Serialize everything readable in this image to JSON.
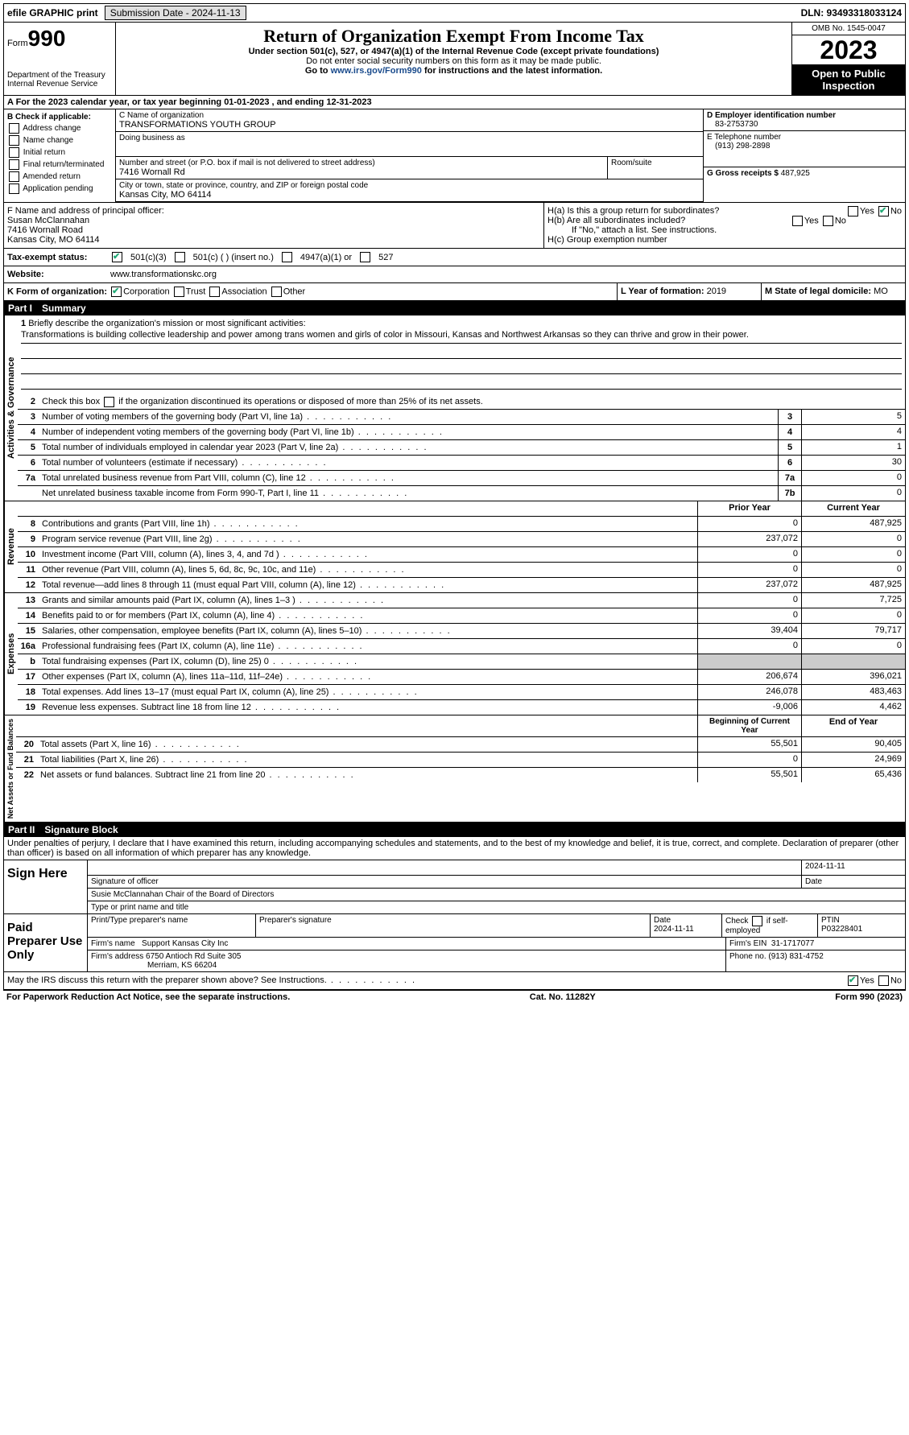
{
  "topbar": {
    "efile": "efile GRAPHIC print",
    "sub_label": "Submission Date - 2024-11-13",
    "dln_label": "DLN: 93493318033124"
  },
  "header": {
    "form_pre": "Form",
    "form_no": "990",
    "dept": "Department of the Treasury\nInternal Revenue Service",
    "title": "Return of Organization Exempt From Income Tax",
    "sub1": "Under section 501(c), 527, or 4947(a)(1) of the Internal Revenue Code (except private foundations)",
    "sub2": "Do not enter social security numbers on this form as it may be made public.",
    "sub3_pre": "Go to ",
    "sub3_link": "www.irs.gov/Form990",
    "sub3_post": " for instructions and the latest information.",
    "omb": "OMB No. 1545-0047",
    "year": "2023",
    "inspect": "Open to Public Inspection"
  },
  "rowA": "A For the 2023 calendar year, or tax year beginning 01-01-2023    , and ending 12-31-2023",
  "boxB": {
    "label": "B Check if applicable:",
    "items": [
      "Address change",
      "Name change",
      "Initial return",
      "Final return/terminated",
      "Amended return",
      "Application pending"
    ]
  },
  "boxC": {
    "name_lbl": "C Name of organization",
    "name": "TRANSFORMATIONS YOUTH GROUP",
    "dba_lbl": "Doing business as",
    "dba": "",
    "addr_lbl": "Number and street (or P.O. box if mail is not delivered to street address)",
    "addr": "7416 Wornall Rd",
    "suite_lbl": "Room/suite",
    "city_lbl": "City or town, state or province, country, and ZIP or foreign postal code",
    "city": "Kansas City, MO  64114"
  },
  "boxD": {
    "lbl": "D Employer identification number",
    "val": "83-2753730"
  },
  "boxE": {
    "lbl": "E Telephone number",
    "val": "(913) 298-2898"
  },
  "boxG": {
    "lbl": "G Gross receipts $",
    "val": "487,925"
  },
  "boxF": {
    "lbl": "F  Name and address of principal officer:",
    "name": "Susan McClannahan",
    "addr": "7416 Wornall Road",
    "city": "Kansas City, MO  64114"
  },
  "boxH": {
    "a": "H(a)  Is this a group return for subordinates?",
    "b": "H(b)  Are all subordinates included?",
    "b2": "If \"No,\" attach a list. See instructions.",
    "c": "H(c)  Group exemption number"
  },
  "rowI": {
    "lbl": "Tax-exempt status:",
    "o1": "501(c)(3)",
    "o2": "501(c) (  ) (insert no.)",
    "o3": "4947(a)(1) or",
    "o4": "527"
  },
  "rowJ": {
    "lbl": "Website:",
    "val": "www.transformationskc.org"
  },
  "rowK": {
    "lbl": "K Form of organization:",
    "o1": "Corporation",
    "o2": "Trust",
    "o3": "Association",
    "o4": "Other"
  },
  "rowL": {
    "lbl": "L Year of formation:",
    "val": "2019"
  },
  "rowM": {
    "lbl": "M State of legal domicile:",
    "val": "MO"
  },
  "part1": {
    "lbl": "Part I",
    "title": "Summary"
  },
  "mission": {
    "q": "Briefly describe the organization's mission or most significant activities:",
    "text": "Transformations is building collective leadership and power among trans women and girls of color in Missouri, Kansas and Northwest Arkansas so they can thrive and grow in their power."
  },
  "line2": "Check this box      if the organization discontinued its operations or disposed of more than 25% of its net assets.",
  "gov_lines": [
    {
      "n": "3",
      "t": "Number of voting members of the governing body (Part VI, line 1a)",
      "bn": "3",
      "v": "5"
    },
    {
      "n": "4",
      "t": "Number of independent voting members of the governing body (Part VI, line 1b)",
      "bn": "4",
      "v": "4"
    },
    {
      "n": "5",
      "t": "Total number of individuals employed in calendar year 2023 (Part V, line 2a)",
      "bn": "5",
      "v": "1"
    },
    {
      "n": "6",
      "t": "Total number of volunteers (estimate if necessary)",
      "bn": "6",
      "v": "30"
    },
    {
      "n": "7a",
      "t": "Total unrelated business revenue from Part VIII, column (C), line 12",
      "bn": "7a",
      "v": "0"
    },
    {
      "n": "",
      "t": "Net unrelated business taxable income from Form 990-T, Part I, line 11",
      "bn": "7b",
      "v": "0"
    }
  ],
  "rev_hdr": {
    "py": "Prior Year",
    "cy": "Current Year"
  },
  "rev_lines": [
    {
      "n": "8",
      "t": "Contributions and grants (Part VIII, line 1h)",
      "py": "0",
      "cy": "487,925"
    },
    {
      "n": "9",
      "t": "Program service revenue (Part VIII, line 2g)",
      "py": "237,072",
      "cy": "0"
    },
    {
      "n": "10",
      "t": "Investment income (Part VIII, column (A), lines 3, 4, and 7d )",
      "py": "0",
      "cy": "0"
    },
    {
      "n": "11",
      "t": "Other revenue (Part VIII, column (A), lines 5, 6d, 8c, 9c, 10c, and 11e)",
      "py": "0",
      "cy": "0"
    },
    {
      "n": "12",
      "t": "Total revenue—add lines 8 through 11 (must equal Part VIII, column (A), line 12)",
      "py": "237,072",
      "cy": "487,925"
    }
  ],
  "exp_lines": [
    {
      "n": "13",
      "t": "Grants and similar amounts paid (Part IX, column (A), lines 1–3 )",
      "py": "0",
      "cy": "7,725"
    },
    {
      "n": "14",
      "t": "Benefits paid to or for members (Part IX, column (A), line 4)",
      "py": "0",
      "cy": "0"
    },
    {
      "n": "15",
      "t": "Salaries, other compensation, employee benefits (Part IX, column (A), lines 5–10)",
      "py": "39,404",
      "cy": "79,717"
    },
    {
      "n": "16a",
      "t": "Professional fundraising fees (Part IX, column (A), line 11e)",
      "py": "0",
      "cy": "0"
    },
    {
      "n": "b",
      "t": "Total fundraising expenses (Part IX, column (D), line 25) 0",
      "py": "",
      "cy": "",
      "gray": true
    },
    {
      "n": "17",
      "t": "Other expenses (Part IX, column (A), lines 11a–11d, 11f–24e)",
      "py": "206,674",
      "cy": "396,021"
    },
    {
      "n": "18",
      "t": "Total expenses. Add lines 13–17 (must equal Part IX, column (A), line 25)",
      "py": "246,078",
      "cy": "483,463"
    },
    {
      "n": "19",
      "t": "Revenue less expenses. Subtract line 18 from line 12",
      "py": "-9,006",
      "cy": "4,462"
    }
  ],
  "na_hdr": {
    "py": "Beginning of Current Year",
    "cy": "End of Year"
  },
  "na_lines": [
    {
      "n": "20",
      "t": "Total assets (Part X, line 16)",
      "py": "55,501",
      "cy": "90,405"
    },
    {
      "n": "21",
      "t": "Total liabilities (Part X, line 26)",
      "py": "0",
      "cy": "24,969"
    },
    {
      "n": "22",
      "t": "Net assets or fund balances. Subtract line 21 from line 20",
      "py": "55,501",
      "cy": "65,436"
    }
  ],
  "tabs": {
    "gov": "Activities & Governance",
    "rev": "Revenue",
    "exp": "Expenses",
    "na": "Net Assets or Fund Balances"
  },
  "part2": {
    "lbl": "Part II",
    "title": "Signature Block"
  },
  "perjury": "Under penalties of perjury, I declare that I have examined this return, including accompanying schedules and statements, and to the best of my knowledge and belief, it is true, correct, and complete. Declaration of preparer (other than officer) is based on all information of which preparer has any knowledge.",
  "sign_here": "Sign Here",
  "sig": {
    "date": "2024-11-11",
    "l1a": "Signature of officer",
    "l1b": "Date",
    "name": "Susie McClannahan Chair of the Board of Directors",
    "l2": "Type or print name and title"
  },
  "paid": "Paid Preparer Use Only",
  "prep": {
    "h1": "Print/Type preparer's name",
    "h2": "Preparer's signature",
    "h3": "Date",
    "h3v": "2024-11-11",
    "h4": "Check        if self-employed",
    "h5": "PTIN",
    "h5v": "P03228401",
    "firm_lbl": "Firm's name",
    "firm": "Support Kansas City Inc",
    "ein_lbl": "Firm's EIN",
    "ein": "31-1717077",
    "addr_lbl": "Firm's address",
    "addr": "6750 Antioch Rd Suite 305",
    "city": "Merriam, KS  66204",
    "ph_lbl": "Phone no.",
    "ph": "(913) 831-4752"
  },
  "discuss": "May the IRS discuss this return with the preparer shown above? See Instructions.",
  "footer": {
    "l": "For Paperwork Reduction Act Notice, see the separate instructions.",
    "c": "Cat. No. 11282Y",
    "r": "Form 990 (2023)"
  }
}
